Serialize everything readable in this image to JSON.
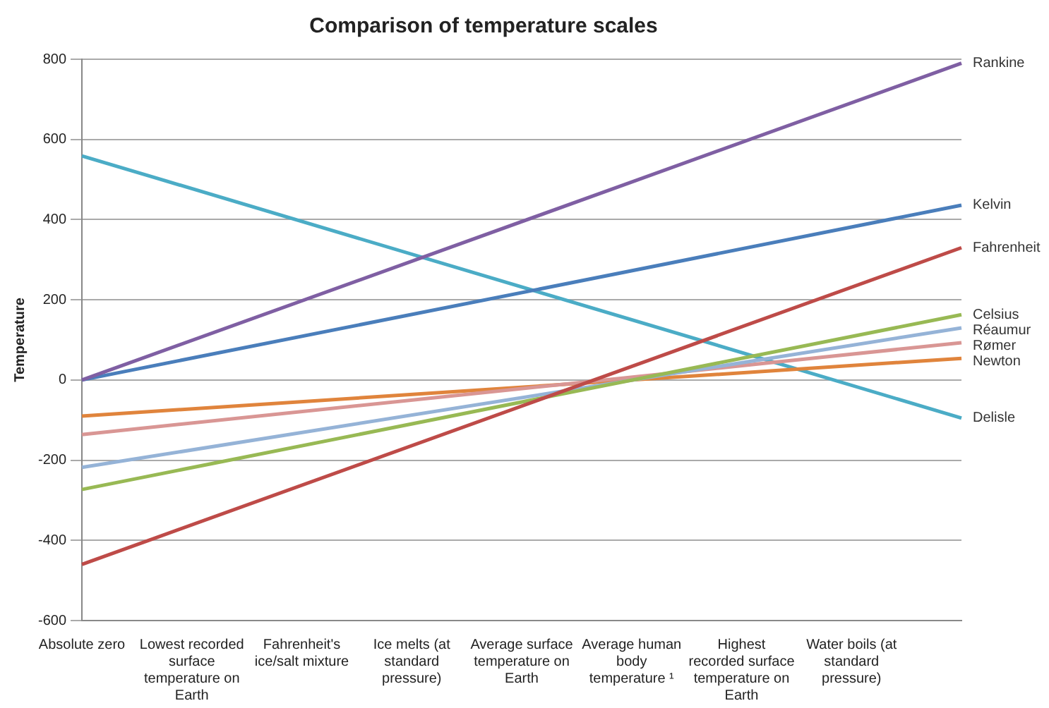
{
  "chart_data": {
    "type": "line",
    "title": "Comparison of temperature scales",
    "ylabel": "Temperature",
    "categories": [
      "Absolute zero",
      "Lowest recorded surface temperature on Earth",
      "Fahrenheit's ice/salt mixture",
      "Ice melts (at standard pressure)",
      "Average surface temperature on Earth",
      "Average human body temperature ¹",
      "Highest recorded surface temperature on Earth",
      "Water boils (at standard pressure)",
      null
    ],
    "series": [
      {
        "name": "Rankine",
        "color": "#7f5fa3",
        "values": [
          0,
          null,
          null,
          null,
          null,
          null,
          null,
          null,
          790
        ]
      },
      {
        "name": "Kelvin",
        "color": "#4a7ebb",
        "values": [
          0,
          null,
          null,
          null,
          null,
          null,
          null,
          null,
          436
        ]
      },
      {
        "name": "Fahrenheit",
        "color": "#be4b48",
        "values": [
          -460,
          null,
          null,
          null,
          null,
          null,
          null,
          null,
          330
        ]
      },
      {
        "name": "Celsius",
        "color": "#98b954",
        "values": [
          -273,
          null,
          null,
          null,
          null,
          null,
          null,
          null,
          163
        ]
      },
      {
        "name": "Réaumur",
        "color": "#95b3d7",
        "values": [
          -218,
          null,
          null,
          null,
          null,
          null,
          null,
          null,
          130
        ]
      },
      {
        "name": "Rømer",
        "color": "#d99694",
        "values": [
          -136,
          null,
          null,
          null,
          null,
          null,
          null,
          null,
          93
        ]
      },
      {
        "name": "Newton",
        "color": "#e0843c",
        "values": [
          -90,
          null,
          null,
          null,
          null,
          null,
          null,
          null,
          54
        ]
      },
      {
        "name": "Delisle",
        "color": "#4bacc6",
        "values": [
          559,
          null,
          null,
          null,
          null,
          null,
          null,
          null,
          -95
        ]
      }
    ],
    "ylim": [
      -600,
      800
    ],
    "yticks": [
      -600,
      -400,
      -200,
      0,
      200,
      400,
      600,
      800
    ],
    "grid": "y",
    "legend": false,
    "marker": "none",
    "line_style": "solid"
  }
}
